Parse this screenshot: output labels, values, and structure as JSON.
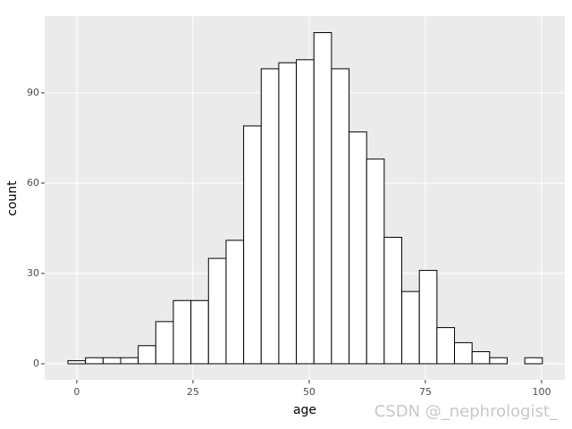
{
  "chart_data": {
    "type": "histogram",
    "x_label": "age",
    "y_label": "count",
    "bins": [
      -1.9,
      1.88,
      5.66,
      9.44,
      13.22,
      17.0,
      20.78,
      24.56,
      28.34,
      32.12,
      35.9,
      39.68,
      43.46,
      47.24,
      51.02,
      54.8,
      58.58,
      62.36,
      66.14,
      69.92,
      73.7,
      77.48,
      81.26,
      85.04,
      88.82,
      92.6,
      96.38,
      100.16
    ],
    "values": [
      1,
      2,
      2,
      2,
      6,
      14,
      21,
      21,
      35,
      41,
      79,
      98,
      100,
      101,
      110,
      98,
      77,
      68,
      42,
      24,
      31,
      12,
      7,
      4,
      2,
      0,
      2
    ],
    "color": "#ffffff",
    "edgecolor": "#000000",
    "panel_color": "#ebebeb",
    "grid": true,
    "xlim": [
      -6.9,
      105
    ],
    "ylim": [
      -5.35,
      115.5
    ],
    "xticks": [
      0,
      25,
      50,
      75,
      100
    ],
    "yticks": [
      0,
      30,
      60,
      90
    ],
    "watermark": "CSDN @_nephrologist_"
  }
}
